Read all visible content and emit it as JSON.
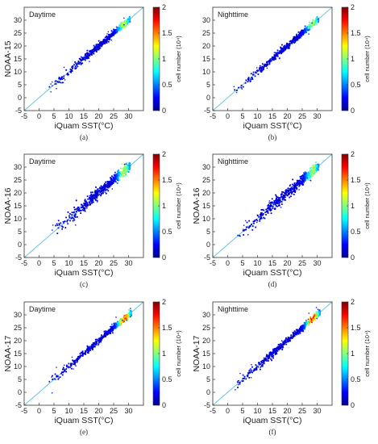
{
  "figure": {
    "xlabel": "iQuam SST(°C)",
    "colorbar": {
      "label": "cell number (10⁴)",
      "ticks": [
        "0",
        "0.5",
        "1",
        "1.5",
        "2"
      ],
      "range": [
        0,
        2
      ]
    }
  },
  "chart_data": [
    {
      "type": "scatter",
      "annotation": "Daytime",
      "panel_label": "(a)",
      "ylabel": "NOAA-15",
      "xlim": [
        -5,
        35
      ],
      "ylim": [
        -5,
        35
      ],
      "xticks": [
        -5,
        0,
        5,
        10,
        15,
        20,
        25,
        30
      ],
      "yticks": [
        -5,
        0,
        5,
        10,
        15,
        20,
        25,
        30
      ],
      "reference_line": "y = x",
      "x_range_data": [
        3,
        30.5
      ],
      "density_peak_at": 28.5
    },
    {
      "type": "scatter",
      "annotation": "Nighttime",
      "panel_label": "(b)",
      "ylabel": "",
      "xlim": [
        -5,
        35
      ],
      "ylim": [
        -5,
        35
      ],
      "xticks": [
        -5,
        0,
        5,
        10,
        15,
        20,
        25,
        30
      ],
      "yticks": [
        -5,
        0,
        5,
        10,
        15,
        20,
        25,
        30
      ],
      "reference_line": "y = x",
      "x_range_data": [
        2,
        30.5
      ],
      "density_peak_at": 28.5
    },
    {
      "type": "scatter",
      "annotation": "Daytime",
      "panel_label": "(c)",
      "ylabel": "NOAA-16",
      "xlim": [
        -5,
        35
      ],
      "ylim": [
        -5,
        35
      ],
      "xticks": [
        -5,
        0,
        5,
        10,
        15,
        20,
        25,
        30
      ],
      "yticks": [
        -5,
        0,
        5,
        10,
        15,
        20,
        25,
        30
      ],
      "reference_line": "y = x",
      "x_range_data": [
        4,
        30.5
      ],
      "density_peak_at": 28.5
    },
    {
      "type": "scatter",
      "annotation": "Nighttime",
      "panel_label": "(d)",
      "ylabel": "NOAA-16",
      "xlim": [
        -5,
        35
      ],
      "ylim": [
        -5,
        35
      ],
      "xticks": [
        -5,
        0,
        5,
        10,
        15,
        20,
        25,
        30
      ],
      "yticks": [
        -5,
        0,
        5,
        10,
        15,
        20,
        25,
        30
      ],
      "reference_line": "y = x",
      "x_range_data": [
        3,
        30.5
      ],
      "density_peak_at": 28.5
    },
    {
      "type": "scatter",
      "annotation": "Daytime",
      "panel_label": "(e)",
      "ylabel": "NOAA-17",
      "xlim": [
        -5,
        35
      ],
      "ylim": [
        -5,
        35
      ],
      "xticks": [
        -5,
        0,
        5,
        10,
        15,
        20,
        25,
        30
      ],
      "yticks": [
        -5,
        0,
        5,
        10,
        15,
        20,
        25,
        30
      ],
      "reference_line": "y = x",
      "x_range_data": [
        3,
        31
      ],
      "density_peak_at": 28.5
    },
    {
      "type": "scatter",
      "annotation": "Nighttime",
      "panel_label": "(f)",
      "ylabel": "NOAA-17",
      "xlim": [
        -5,
        35
      ],
      "ylim": [
        -5,
        35
      ],
      "xticks": [
        -5,
        0,
        5,
        10,
        15,
        20,
        25,
        30
      ],
      "yticks": [
        -5,
        0,
        5,
        10,
        15,
        20,
        25,
        30
      ],
      "reference_line": "y = x",
      "x_range_data": [
        2,
        31
      ],
      "density_peak_at": 28.5
    }
  ],
  "colors": {
    "reference_line": "#5bc0e6",
    "axis": "#333333",
    "colormap": [
      "#00008f",
      "#0000ff",
      "#0080ff",
      "#00ffff",
      "#80ff80",
      "#ffff00",
      "#ff8000",
      "#ff0000",
      "#800000"
    ]
  }
}
